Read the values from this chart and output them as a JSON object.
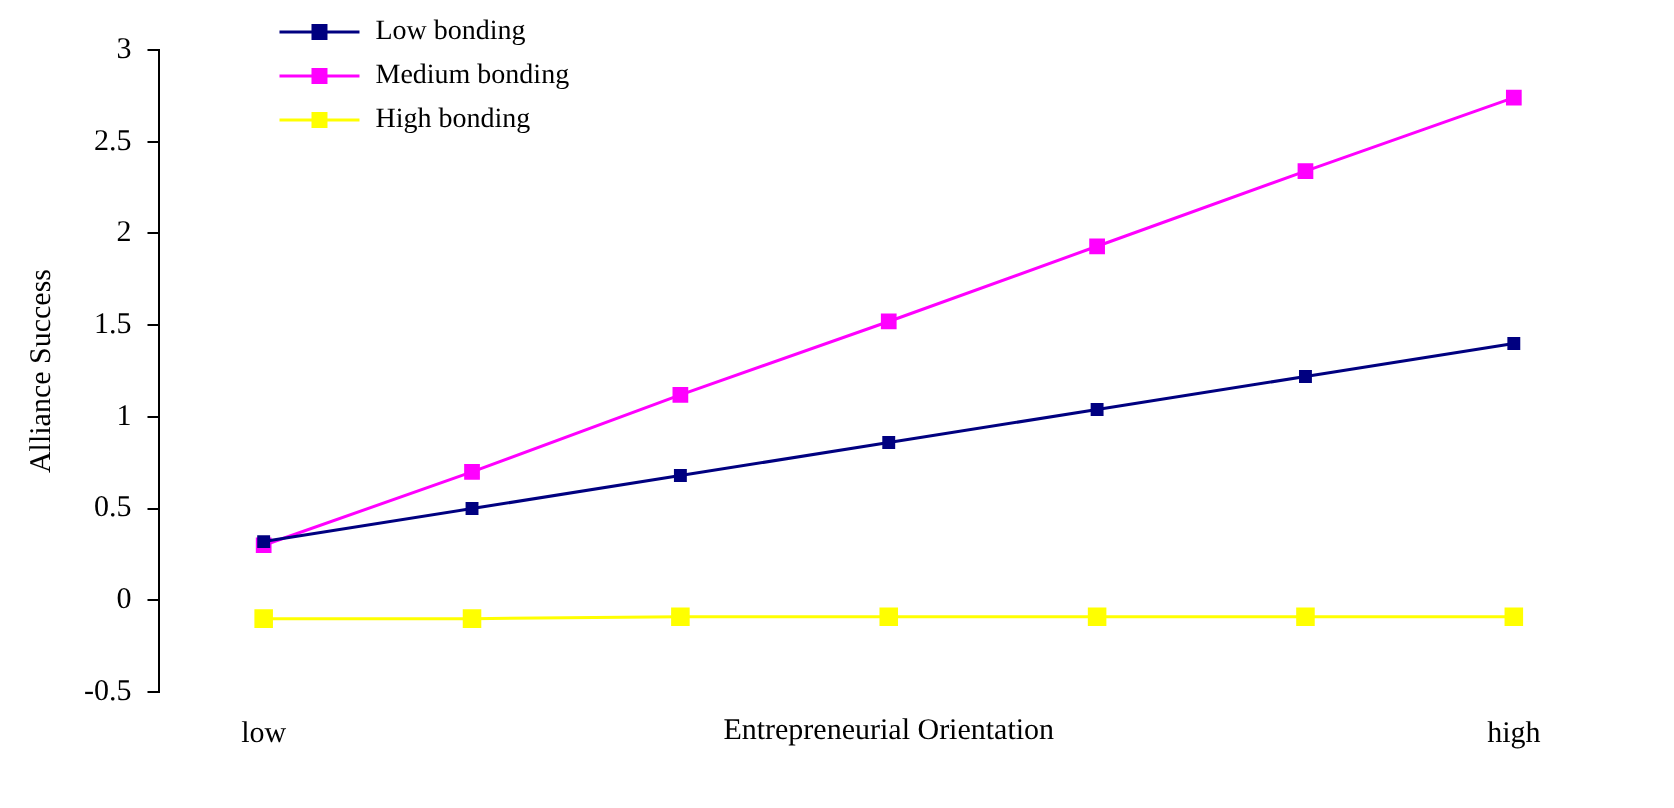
{
  "chart_data": {
    "type": "line",
    "xlabel": "Entrepreneurial Orientation",
    "ylabel": "Alliance Success",
    "categories": [
      "low",
      null,
      null,
      null,
      null,
      null,
      "high"
    ],
    "series": [
      {
        "name": "Low bonding",
        "color": "#000080",
        "values": [
          0.32,
          0.5,
          0.68,
          0.86,
          1.04,
          1.22,
          1.4
        ]
      },
      {
        "name": "Medium bonding",
        "color": "#ff00ff",
        "values": [
          0.3,
          0.7,
          1.12,
          1.52,
          1.93,
          2.34,
          2.74
        ]
      },
      {
        "name": "High bonding",
        "color": "#ffff00",
        "values": [
          -0.1,
          -0.1,
          -0.09,
          -0.09,
          -0.09,
          -0.09,
          -0.09
        ]
      }
    ],
    "ylim": [
      -0.5,
      3
    ],
    "yticks": [
      -0.5,
      0,
      0.5,
      1,
      1.5,
      2,
      2.5,
      3
    ],
    "grid": false,
    "legend": "top left",
    "marker": "square",
    "line_style": "solid"
  }
}
